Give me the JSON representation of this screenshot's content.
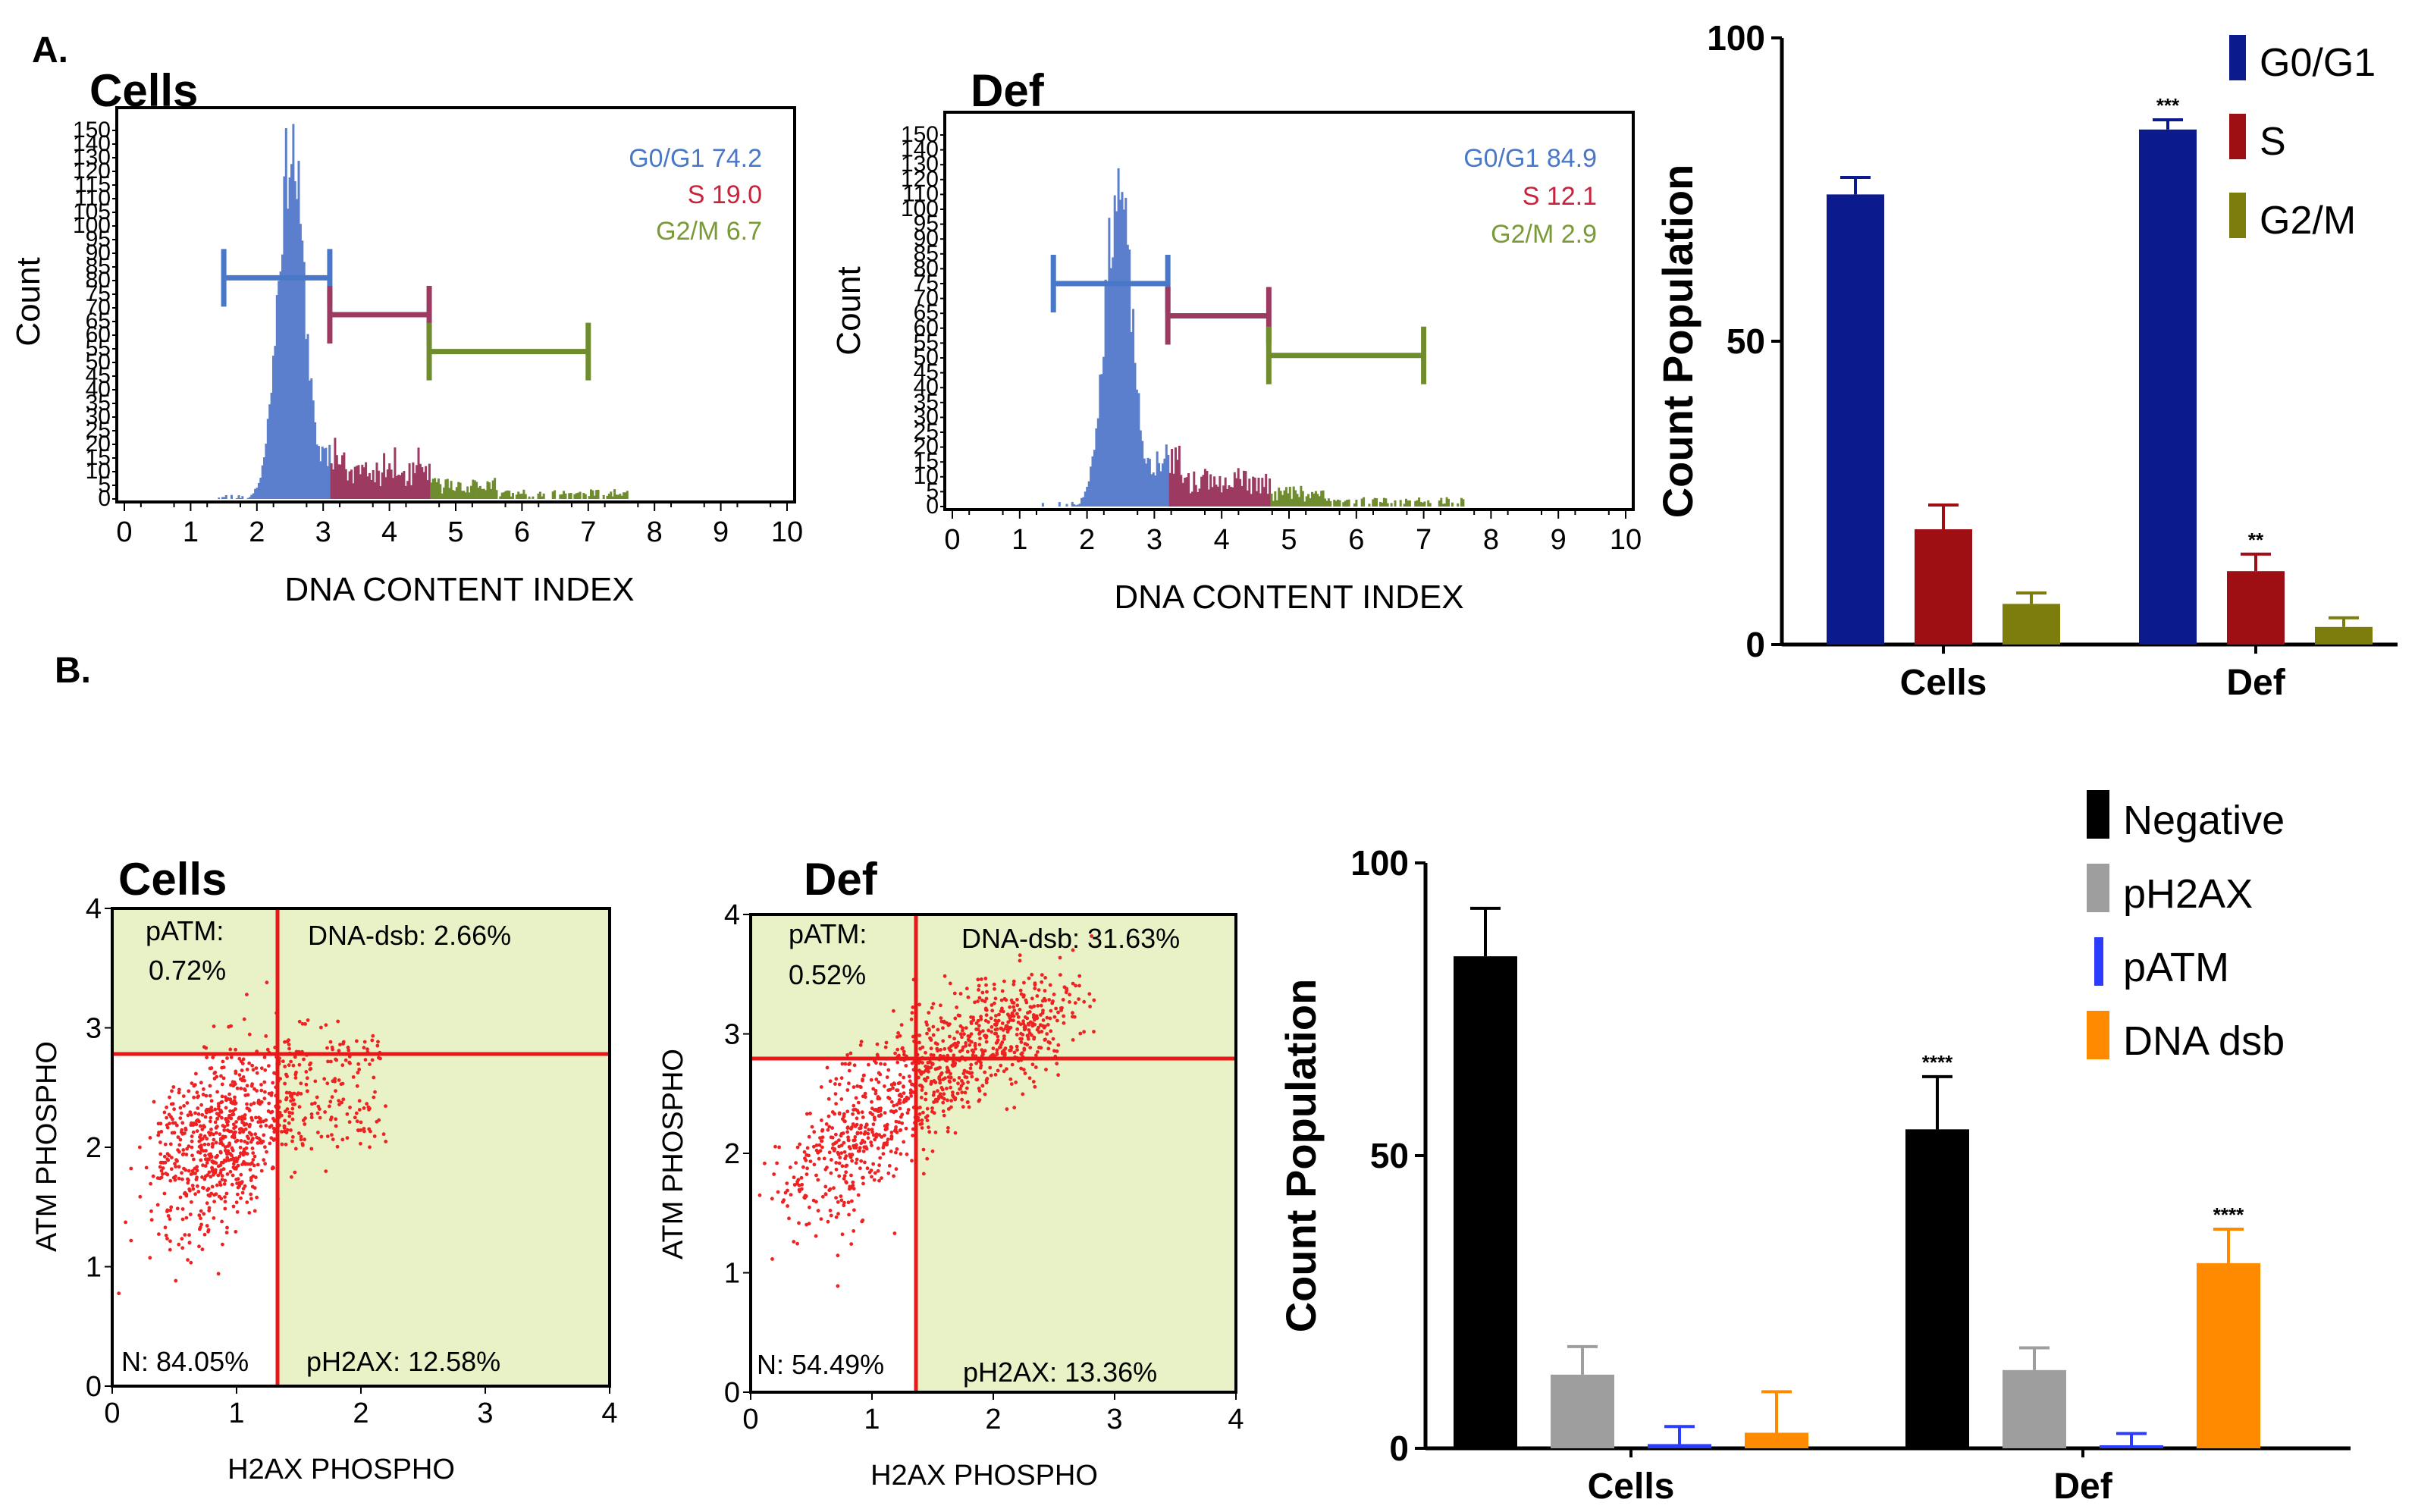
{
  "panel_labels": {
    "a": "A.",
    "b": "B."
  },
  "colors": {
    "g0g1": "#4a78c8",
    "s": "#c8233c",
    "g2m": "#7a9a38",
    "hist_g1": "#5b7fcd",
    "hist_s": "#9c3a62",
    "hist_g2m": "#6f8d2e",
    "bar_g0g1": "#0b1a8c",
    "bar_s": "#9e0f14",
    "bar_g2m": "#7d7d0d",
    "neg": "#000000",
    "ph2ax": "#9e9e9e",
    "patm": "#2a3cff",
    "dsb": "#ff8a00",
    "quadrant_bg": "#e9f2c6",
    "scatter": "#ee2222",
    "gate_line": "#e81818"
  },
  "histograms": [
    {
      "title": "Cells",
      "xlabel": "DNA CONTENT INDEX",
      "ylabel": "Count",
      "y_ticks": [
        "0",
        "5",
        "10",
        "15",
        "20",
        "25",
        "30",
        "35",
        "40",
        "45",
        "50",
        "55",
        "60",
        "65",
        "70",
        "75",
        "80",
        "85",
        "90",
        "95",
        "100",
        "105",
        "110",
        "115",
        "120",
        "130",
        "140",
        "150"
      ],
      "x_ticks": [
        "0",
        "1",
        "2",
        "3",
        "4",
        "5",
        "6",
        "7",
        "8",
        "9",
        "10"
      ],
      "stats": [
        {
          "label": "G0/G1 74.2"
        },
        {
          "label": "S 19.0"
        },
        {
          "label": "G2/M 6.7"
        }
      ]
    },
    {
      "title": "Def",
      "xlabel": "DNA CONTENT INDEX",
      "ylabel": "Count",
      "y_ticks": [
        "0",
        "5",
        "10",
        "15",
        "20",
        "25",
        "30",
        "35",
        "40",
        "45",
        "50",
        "55",
        "60",
        "65",
        "70",
        "75",
        "80",
        "85",
        "90",
        "95",
        "100",
        "110",
        "120",
        "130",
        "140",
        "150"
      ],
      "x_ticks": [
        "0",
        "1",
        "2",
        "3",
        "4",
        "5",
        "6",
        "7",
        "8",
        "9",
        "10"
      ],
      "stats": [
        {
          "label": "G0/G1 84.9"
        },
        {
          "label": "S 12.1"
        },
        {
          "label": "G2/M 2.9"
        }
      ]
    }
  ],
  "scatters": [
    {
      "title": "Cells",
      "xlabel": "H2AX PHOSPHO",
      "ylabel": "ATM PHOSPHO",
      "ticks": [
        "0",
        "1",
        "2",
        "3",
        "4"
      ],
      "quadrants": {
        "ul_name": "pATM:",
        "ul_value": "0.72%",
        "ur": "DNA-dsb: 2.66%",
        "ll": "N: 84.05%",
        "lr": "pH2AX: 12.58%"
      }
    },
    {
      "title": "Def",
      "xlabel": "H2AX PHOSPHO",
      "ylabel": "ATM PHOSPHO",
      "ticks": [
        "0",
        "1",
        "2",
        "3",
        "4"
      ],
      "quadrants": {
        "ul_name": "pATM:",
        "ul_value": "0.52%",
        "ur": "DNA-dsb: 31.63%",
        "ll": "N: 54.49%",
        "lr": "pH2AX: 13.36%"
      }
    }
  ],
  "chart_data": [
    {
      "type": "histogram",
      "title": "Cells",
      "xlabel": "DNA CONTENT INDEX",
      "ylabel": "Count",
      "xlim": [
        0,
        10
      ],
      "ylim": [
        0,
        150
      ],
      "gates": [
        {
          "name": "G0/G1",
          "range": [
            1.5,
            3.1
          ],
          "level": 90,
          "percent": 74.2
        },
        {
          "name": "S",
          "range": [
            3.1,
            4.6
          ],
          "level": 75,
          "percent": 19.0
        },
        {
          "name": "G2/M",
          "range": [
            4.6,
            7.0
          ],
          "level": 60,
          "percent": 6.7
        }
      ],
      "peak": {
        "center": 2.5,
        "height": 142
      }
    },
    {
      "type": "histogram",
      "title": "Def",
      "xlabel": "DNA CONTENT INDEX",
      "ylabel": "Count",
      "xlim": [
        0,
        10
      ],
      "ylim": [
        0,
        150
      ],
      "gates": [
        {
          "name": "G0/G1",
          "range": [
            1.5,
            3.2
          ],
          "level": 90,
          "percent": 84.9
        },
        {
          "name": "S",
          "range": [
            3.2,
            4.7
          ],
          "level": 77,
          "percent": 12.1
        },
        {
          "name": "G2/M",
          "range": [
            4.7,
            7.0
          ],
          "level": 61,
          "percent": 2.9
        }
      ],
      "peak": {
        "center": 2.45,
        "height": 128
      }
    },
    {
      "type": "bar",
      "categories": [
        "Cells",
        "Def"
      ],
      "series": [
        {
          "name": "G0/G1",
          "values": [
            74.2,
            84.9
          ],
          "errors": [
            2.8,
            1.6
          ],
          "annotations": [
            "",
            "***"
          ]
        },
        {
          "name": "S",
          "values": [
            19.0,
            12.1
          ],
          "errors": [
            4.0,
            2.8
          ],
          "annotations": [
            "",
            "**"
          ]
        },
        {
          "name": "G2/M",
          "values": [
            6.7,
            2.9
          ],
          "errors": [
            1.8,
            1.5
          ],
          "annotations": [
            "",
            ""
          ]
        }
      ],
      "ylabel": "Count Population",
      "ylim": [
        0,
        100
      ],
      "yticks": [
        0,
        50,
        100
      ],
      "legend": "top-right"
    },
    {
      "type": "scatter",
      "title": "Cells",
      "xlabel": "H2AX PHOSPHO",
      "ylabel": "ATM PHOSPHO",
      "xlim": [
        0,
        4
      ],
      "ylim": [
        0,
        4
      ],
      "gate": {
        "x": 1.32,
        "y": 2.8
      },
      "quadrants": {
        "pATM": 0.72,
        "DNA-dsb": 2.66,
        "N": 84.05,
        "pH2AX": 12.58
      },
      "cloud": {
        "center": [
          0.9,
          2.1
        ],
        "spread": [
          0.3,
          0.35
        ],
        "n": 900
      }
    },
    {
      "type": "scatter",
      "title": "Def",
      "xlabel": "H2AX PHOSPHO",
      "ylabel": "ATM PHOSPHO",
      "xlim": [
        0,
        4
      ],
      "ylim": [
        0,
        4
      ],
      "gate": {
        "x": 1.3,
        "y": 2.78
      },
      "quadrants": {
        "pATM": 0.52,
        "DNA-dsb": 31.63,
        "N": 54.49,
        "pH2AX": 13.36
      },
      "cloud": {
        "start": [
          0.5,
          1.3
        ],
        "end": [
          2.5,
          3.25
        ],
        "n": 1100
      }
    },
    {
      "type": "bar",
      "categories": [
        "Cells",
        "Def"
      ],
      "series": [
        {
          "name": "Negative",
          "values": [
            84.05,
            54.49
          ],
          "errors": [
            8.2,
            9.0
          ],
          "annotations": [
            "",
            "****"
          ]
        },
        {
          "name": "pH2AX",
          "values": [
            12.58,
            13.36
          ],
          "errors": [
            4.8,
            3.8
          ],
          "annotations": [
            "",
            ""
          ]
        },
        {
          "name": "pATM",
          "values": [
            0.72,
            0.52
          ],
          "errors": [
            3.0,
            2.0
          ],
          "annotations": [
            "",
            ""
          ]
        },
        {
          "name": "DNA dsb",
          "values": [
            2.66,
            31.63
          ],
          "errors": [
            7.0,
            5.8
          ],
          "annotations": [
            "",
            "****"
          ]
        }
      ],
      "ylabel": "Count Population",
      "ylim": [
        0,
        100
      ],
      "yticks": [
        0,
        50,
        100
      ],
      "legend": "top-right"
    }
  ]
}
